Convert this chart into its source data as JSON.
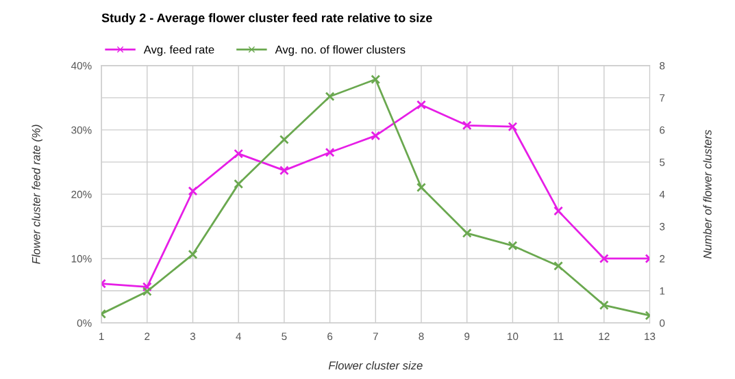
{
  "chart_data": {
    "type": "line",
    "title": "Study 2 - Average flower cluster feed rate relative to size",
    "xlabel": "Flower cluster size",
    "ylabel": "Flower cluster feed rate (%)",
    "y2label": "Number of flower clusters",
    "x": [
      1,
      2,
      3,
      4,
      5,
      6,
      7,
      8,
      9,
      10,
      11,
      12,
      13
    ],
    "series": [
      {
        "name": "Avg. feed rate",
        "color": "#e61ee6",
        "values": [
          6.1,
          5.6,
          20.5,
          26.3,
          23.7,
          26.5,
          29.1,
          33.9,
          30.7,
          30.5,
          17.4,
          10.0,
          10.0
        ]
      },
      {
        "name": "Avg. no. of flower clusters",
        "color": "#6aa84f",
        "axis": "y2",
        "values": [
          0.28,
          0.98,
          2.13,
          4.32,
          5.7,
          7.04,
          7.57,
          4.21,
          2.79,
          2.4,
          1.77,
          0.55,
          0.23
        ]
      }
    ],
    "xlim": [
      1,
      13
    ],
    "xticks": [
      1,
      2,
      3,
      4,
      5,
      6,
      7,
      8,
      9,
      10,
      11,
      12,
      13
    ],
    "ylim": [
      0,
      40
    ],
    "yticks": [
      {
        "value": 0,
        "label": "0%"
      },
      {
        "value": 5,
        "label": null
      },
      {
        "value": 10,
        "label": "10%"
      },
      {
        "value": 15,
        "label": null
      },
      {
        "value": 20,
        "label": "20%"
      },
      {
        "value": 25,
        "label": null
      },
      {
        "value": 30,
        "label": "30%"
      },
      {
        "value": 35,
        "label": null
      },
      {
        "value": 40,
        "label": "40%"
      }
    ],
    "y2lim": [
      0,
      8
    ],
    "y2ticks": [
      0,
      1,
      2,
      3,
      4,
      5,
      6,
      7,
      8
    ],
    "grid": true,
    "legend": "top left",
    "marker": "cross",
    "line_style": "solid"
  }
}
